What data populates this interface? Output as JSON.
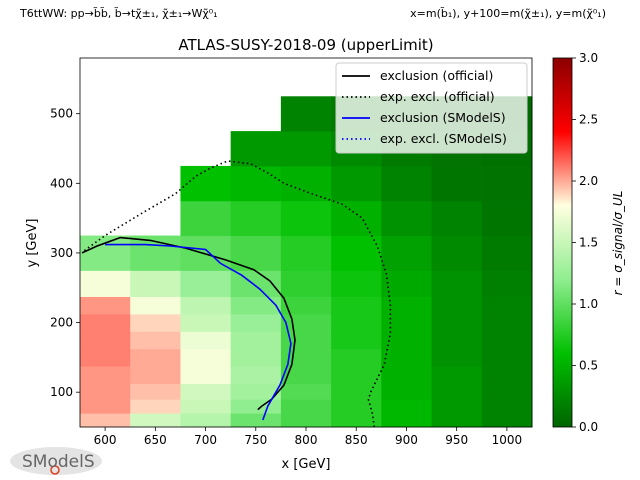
{
  "header": {
    "process": "T6ttWW: pp→b̃b̃, b̃→tχ̃±₁, χ̃±₁→Wχ̃⁰₁",
    "mass_definition": "x=m(b̃₁), y+100=m(χ̃±₁), y=m(χ̃⁰₁)"
  },
  "logo": {
    "text": "SModelS"
  },
  "chart_data": {
    "type": "heatmap",
    "title": "ATLAS-SUSY-2018-09 (upperLimit)",
    "xlabel": "x [GeV]",
    "ylabel": "y [GeV]",
    "xlim": [
      575,
      1025
    ],
    "ylim": [
      50,
      580
    ],
    "xticks": [
      600,
      650,
      700,
      750,
      800,
      850,
      900,
      950,
      1000
    ],
    "yticks": [
      100,
      200,
      300,
      400,
      500
    ],
    "colorbar": {
      "label": "r = σ_signal/σ_UL",
      "range": [
        0.0,
        3.0
      ],
      "ticks": [
        0.0,
        0.5,
        1.0,
        1.5,
        2.0,
        2.5,
        3.0
      ],
      "tick_labels": [
        "0.0",
        "0.5",
        "1.0",
        "1.5",
        "2.0",
        "2.5",
        "3.0"
      ],
      "colors": [
        "#006400",
        "#00c000",
        "#90ee90",
        "#ffffe0",
        "#ff0000",
        "#8b0000"
      ]
    },
    "cell_width": 50,
    "cells": [
      {
        "x": 600,
        "y": 60,
        "r": 1.95
      },
      {
        "x": 600,
        "y": 80,
        "r": 2.05
      },
      {
        "x": 600,
        "y": 100,
        "r": 2.05
      },
      {
        "x": 600,
        "y": 125,
        "r": 2.05
      },
      {
        "x": 600,
        "y": 150,
        "r": 2.1
      },
      {
        "x": 600,
        "y": 175,
        "r": 2.1
      },
      {
        "x": 600,
        "y": 200,
        "r": 2.1
      },
      {
        "x": 600,
        "y": 225,
        "r": 2.05
      },
      {
        "x": 600,
        "y": 250,
        "r": 1.75
      },
      {
        "x": 600,
        "y": 300,
        "r": 1.15
      },
      {
        "x": 650,
        "y": 60,
        "r": 1.55
      },
      {
        "x": 650,
        "y": 80,
        "r": 1.9
      },
      {
        "x": 650,
        "y": 100,
        "r": 1.95
      },
      {
        "x": 650,
        "y": 125,
        "r": 2.0
      },
      {
        "x": 650,
        "y": 150,
        "r": 2.0
      },
      {
        "x": 650,
        "y": 175,
        "r": 1.95
      },
      {
        "x": 650,
        "y": 200,
        "r": 1.9
      },
      {
        "x": 650,
        "y": 225,
        "r": 1.75
      },
      {
        "x": 650,
        "y": 250,
        "r": 1.5
      },
      {
        "x": 650,
        "y": 300,
        "r": 1.05
      },
      {
        "x": 700,
        "y": 60,
        "r": 1.4
      },
      {
        "x": 700,
        "y": 80,
        "r": 1.5
      },
      {
        "x": 700,
        "y": 100,
        "r": 1.55
      },
      {
        "x": 700,
        "y": 125,
        "r": 1.75
      },
      {
        "x": 700,
        "y": 150,
        "r": 1.75
      },
      {
        "x": 700,
        "y": 175,
        "r": 1.7
      },
      {
        "x": 700,
        "y": 200,
        "r": 1.5
      },
      {
        "x": 700,
        "y": 225,
        "r": 1.45
      },
      {
        "x": 700,
        "y": 250,
        "r": 1.25
      },
      {
        "x": 700,
        "y": 300,
        "r": 1.0
      },
      {
        "x": 700,
        "y": 350,
        "r": 0.85
      },
      {
        "x": 700,
        "y": 400,
        "r": 0.6
      },
      {
        "x": 750,
        "y": 60,
        "r": 1.05
      },
      {
        "x": 750,
        "y": 80,
        "r": 1.2
      },
      {
        "x": 750,
        "y": 100,
        "r": 1.3
      },
      {
        "x": 750,
        "y": 125,
        "r": 1.35
      },
      {
        "x": 750,
        "y": 150,
        "r": 1.3
      },
      {
        "x": 750,
        "y": 175,
        "r": 1.3
      },
      {
        "x": 750,
        "y": 200,
        "r": 1.25
      },
      {
        "x": 750,
        "y": 225,
        "r": 1.15
      },
      {
        "x": 750,
        "y": 250,
        "r": 1.05
      },
      {
        "x": 750,
        "y": 300,
        "r": 0.9
      },
      {
        "x": 750,
        "y": 350,
        "r": 0.75
      },
      {
        "x": 750,
        "y": 400,
        "r": 0.55
      },
      {
        "x": 750,
        "y": 450,
        "r": 0.35
      },
      {
        "x": 800,
        "y": 60,
        "r": 0.9
      },
      {
        "x": 800,
        "y": 80,
        "r": 0.9
      },
      {
        "x": 800,
        "y": 100,
        "r": 0.95
      },
      {
        "x": 800,
        "y": 125,
        "r": 0.9
      },
      {
        "x": 800,
        "y": 150,
        "r": 0.9
      },
      {
        "x": 800,
        "y": 175,
        "r": 0.9
      },
      {
        "x": 800,
        "y": 200,
        "r": 0.9
      },
      {
        "x": 800,
        "y": 225,
        "r": 0.85
      },
      {
        "x": 800,
        "y": 250,
        "r": 0.8
      },
      {
        "x": 800,
        "y": 300,
        "r": 0.75
      },
      {
        "x": 800,
        "y": 350,
        "r": 0.65
      },
      {
        "x": 800,
        "y": 400,
        "r": 0.5
      },
      {
        "x": 800,
        "y": 450,
        "r": 0.35
      },
      {
        "x": 800,
        "y": 500,
        "r": 0.2
      },
      {
        "x": 850,
        "y": 60,
        "r": 0.75
      },
      {
        "x": 850,
        "y": 80,
        "r": 0.75
      },
      {
        "x": 850,
        "y": 100,
        "r": 0.75
      },
      {
        "x": 850,
        "y": 125,
        "r": 0.75
      },
      {
        "x": 850,
        "y": 150,
        "r": 0.75
      },
      {
        "x": 850,
        "y": 175,
        "r": 0.7
      },
      {
        "x": 850,
        "y": 200,
        "r": 0.7
      },
      {
        "x": 850,
        "y": 225,
        "r": 0.7
      },
      {
        "x": 850,
        "y": 250,
        "r": 0.65
      },
      {
        "x": 850,
        "y": 300,
        "r": 0.6
      },
      {
        "x": 850,
        "y": 350,
        "r": 0.5
      },
      {
        "x": 850,
        "y": 400,
        "r": 0.35
      },
      {
        "x": 850,
        "y": 450,
        "r": 0.25
      },
      {
        "x": 850,
        "y": 500,
        "r": 0.15
      },
      {
        "x": 900,
        "y": 60,
        "r": 0.55
      },
      {
        "x": 900,
        "y": 80,
        "r": 0.55
      },
      {
        "x": 900,
        "y": 100,
        "r": 0.5
      },
      {
        "x": 900,
        "y": 125,
        "r": 0.5
      },
      {
        "x": 900,
        "y": 150,
        "r": 0.5
      },
      {
        "x": 900,
        "y": 175,
        "r": 0.5
      },
      {
        "x": 900,
        "y": 200,
        "r": 0.5
      },
      {
        "x": 900,
        "y": 225,
        "r": 0.5
      },
      {
        "x": 900,
        "y": 250,
        "r": 0.45
      },
      {
        "x": 900,
        "y": 300,
        "r": 0.4
      },
      {
        "x": 900,
        "y": 350,
        "r": 0.3
      },
      {
        "x": 900,
        "y": 400,
        "r": 0.2
      },
      {
        "x": 900,
        "y": 450,
        "r": 0.15
      },
      {
        "x": 900,
        "y": 500,
        "r": 0.12
      },
      {
        "x": 950,
        "y": 60,
        "r": 0.35
      },
      {
        "x": 950,
        "y": 80,
        "r": 0.35
      },
      {
        "x": 950,
        "y": 100,
        "r": 0.35
      },
      {
        "x": 950,
        "y": 125,
        "r": 0.35
      },
      {
        "x": 950,
        "y": 150,
        "r": 0.3
      },
      {
        "x": 950,
        "y": 175,
        "r": 0.3
      },
      {
        "x": 950,
        "y": 200,
        "r": 0.3
      },
      {
        "x": 950,
        "y": 225,
        "r": 0.3
      },
      {
        "x": 950,
        "y": 250,
        "r": 0.3
      },
      {
        "x": 950,
        "y": 300,
        "r": 0.25
      },
      {
        "x": 950,
        "y": 350,
        "r": 0.2
      },
      {
        "x": 950,
        "y": 400,
        "r": 0.12
      },
      {
        "x": 950,
        "y": 450,
        "r": 0.1
      },
      {
        "x": 950,
        "y": 500,
        "r": 0.08
      },
      {
        "x": 1000,
        "y": 60,
        "r": 0.2
      },
      {
        "x": 1000,
        "y": 80,
        "r": 0.2
      },
      {
        "x": 1000,
        "y": 100,
        "r": 0.2
      },
      {
        "x": 1000,
        "y": 125,
        "r": 0.2
      },
      {
        "x": 1000,
        "y": 150,
        "r": 0.2
      },
      {
        "x": 1000,
        "y": 175,
        "r": 0.2
      },
      {
        "x": 1000,
        "y": 200,
        "r": 0.2
      },
      {
        "x": 1000,
        "y": 225,
        "r": 0.2
      },
      {
        "x": 1000,
        "y": 250,
        "r": 0.18
      },
      {
        "x": 1000,
        "y": 300,
        "r": 0.15
      },
      {
        "x": 1000,
        "y": 350,
        "r": 0.12
      },
      {
        "x": 1000,
        "y": 400,
        "r": 0.1
      },
      {
        "x": 1000,
        "y": 450,
        "r": 0.08
      },
      {
        "x": 1000,
        "y": 500,
        "r": 0.05
      }
    ],
    "series": [
      {
        "name": "exclusion (official)",
        "color": "#000000",
        "style": "solid",
        "points": [
          [
            752,
            75
          ],
          [
            756,
            80
          ],
          [
            766,
            90
          ],
          [
            778,
            110
          ],
          [
            786,
            140
          ],
          [
            789,
            175
          ],
          [
            786,
            205
          ],
          [
            778,
            235
          ],
          [
            764,
            260
          ],
          [
            748,
            276
          ],
          [
            720,
            290
          ],
          [
            680,
            307
          ],
          [
            645,
            318
          ],
          [
            615,
            322
          ],
          [
            592,
            310
          ],
          [
            577,
            300
          ]
        ]
      },
      {
        "name": "exp. excl. (official)",
        "color": "#000000",
        "style": "dotted",
        "points": [
          [
            868,
            50
          ],
          [
            866,
            70
          ],
          [
            862,
            90
          ],
          [
            865,
            102
          ],
          [
            878,
            140
          ],
          [
            884,
            185
          ],
          [
            884,
            225
          ],
          [
            880,
            270
          ],
          [
            871,
            310
          ],
          [
            856,
            350
          ],
          [
            836,
            370
          ],
          [
            806,
            385
          ],
          [
            778,
            400
          ],
          [
            762,
            415
          ],
          [
            745,
            428
          ],
          [
            722,
            432
          ],
          [
            705,
            422
          ],
          [
            690,
            410
          ],
          [
            670,
            385
          ],
          [
            640,
            360
          ],
          [
            600,
            325
          ],
          [
            578,
            302
          ]
        ]
      },
      {
        "name": "exclusion (SModelS)",
        "color": "#0000ff",
        "style": "solid",
        "points": [
          [
            757,
            60
          ],
          [
            762,
            80
          ],
          [
            774,
            110
          ],
          [
            782,
            140
          ],
          [
            785,
            170
          ],
          [
            780,
            200
          ],
          [
            770,
            225
          ],
          [
            754,
            248
          ],
          [
            736,
            268
          ],
          [
            715,
            285
          ],
          [
            700,
            305
          ],
          [
            665,
            310
          ],
          [
            640,
            312
          ],
          [
            600,
            312
          ]
        ]
      },
      {
        "name": "exp. excl. (SModelS)",
        "color": "#0000ff",
        "style": "dotted",
        "points": []
      }
    ],
    "legend": {
      "placement": "upper right"
    },
    "grid": false
  }
}
